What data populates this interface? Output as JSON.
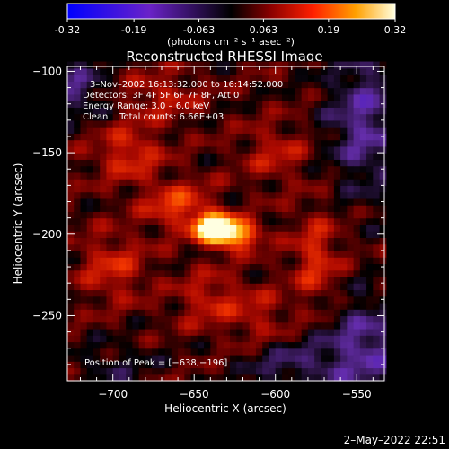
{
  "colorbar": {
    "ticks": [
      "-0.32",
      "-0.19",
      "-0.063",
      "0.063",
      "0.19",
      "0.32"
    ],
    "tick_values": [
      -0.32,
      -0.19,
      -0.063,
      0.063,
      0.19,
      0.32
    ],
    "range": [
      -0.32,
      0.32
    ],
    "unit_label": "(photons cm⁻² s⁻¹ asec⁻²)"
  },
  "chart_data": {
    "type": "heatmap",
    "title": "Reconstructed RHESSI Image",
    "xlabel": "Heliocentric X (arcsec)",
    "ylabel": "Heliocentric Y (arcsec)",
    "xlim": [
      -728,
      -533
    ],
    "ylim": [
      -290,
      -97
    ],
    "x_ticks": [
      -700,
      -650,
      -600,
      -550
    ],
    "x_tick_labels": [
      "−700",
      "−650",
      "−600",
      "−550"
    ],
    "y_ticks": [
      -100,
      -150,
      -200,
      -250
    ],
    "y_tick_labels": [
      "−100",
      "−150",
      "−200",
      "−250"
    ],
    "peak": {
      "x": -638,
      "y": -196
    },
    "sources": [
      {
        "x": -638,
        "y": -196,
        "amp": 0.36,
        "sx": 8,
        "sy": 6
      },
      {
        "x": -624,
        "y": -200,
        "amp": 0.22,
        "sx": 10,
        "sy": 6
      },
      {
        "x": -660,
        "y": -182,
        "amp": 0.12,
        "sx": 14,
        "sy": 10
      },
      {
        "x": -690,
        "y": -150,
        "amp": 0.1,
        "sx": 14,
        "sy": 12
      },
      {
        "x": -700,
        "y": -220,
        "amp": 0.09,
        "sx": 14,
        "sy": 14
      },
      {
        "x": -575,
        "y": -215,
        "amp": 0.1,
        "sx": 10,
        "sy": 20
      },
      {
        "x": -640,
        "y": -240,
        "amp": 0.08,
        "sx": 14,
        "sy": 12
      },
      {
        "x": -600,
        "y": -150,
        "amp": 0.07,
        "sx": 14,
        "sy": 12
      },
      {
        "x": -670,
        "y": -115,
        "amp": 0.07,
        "sx": 16,
        "sy": 10
      },
      {
        "x": -610,
        "y": -250,
        "amp": 0.06,
        "sx": 12,
        "sy": 12
      },
      {
        "x": -545,
        "y": -130,
        "amp": -0.12,
        "sx": 16,
        "sy": 30
      },
      {
        "x": -545,
        "y": -270,
        "amp": -0.12,
        "sx": 18,
        "sy": 22
      },
      {
        "x": -590,
        "y": -280,
        "amp": -0.08,
        "sx": 20,
        "sy": 10
      },
      {
        "x": -722,
        "y": -110,
        "amp": -0.1,
        "sx": 12,
        "sy": 12
      },
      {
        "x": -700,
        "y": -280,
        "amp": -0.05,
        "sx": 18,
        "sy": 10
      }
    ]
  },
  "annotations": {
    "time": "3–Nov–2002 16:13:32.000 to 16:14:52.000",
    "detectors": "Detectors: 3F 4F 5F 6F 7F 8F, Att 0",
    "energy": "Energy Range: 3.0 – 6.0 keV",
    "clean": "Clean    Total counts: 6.66E+03",
    "peak": "Position of Peak = [−638,−196]"
  },
  "timestamp": "2–May–2022 22:51"
}
